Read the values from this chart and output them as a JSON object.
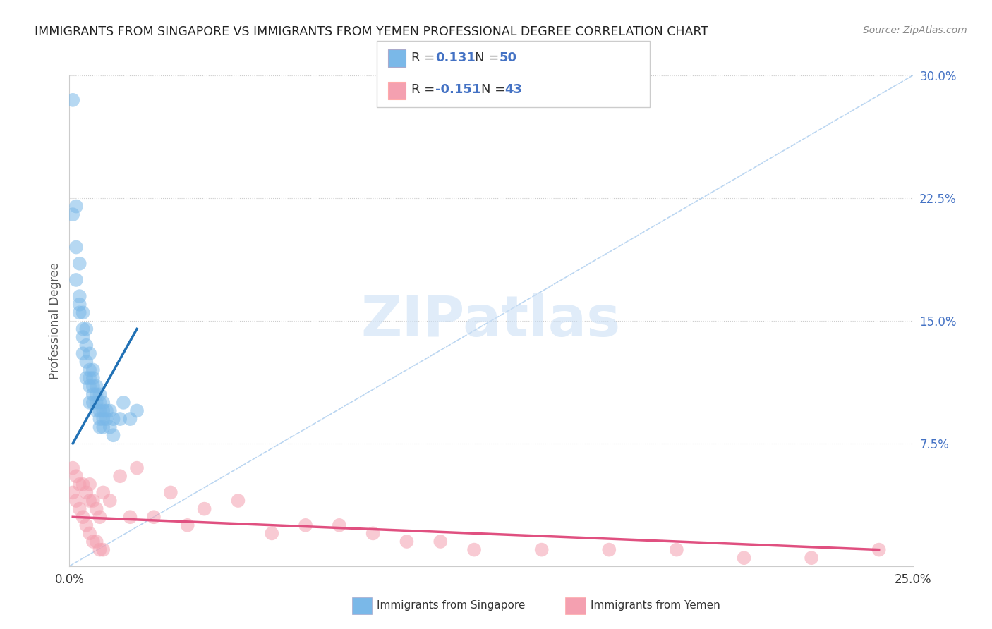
{
  "title": "IMMIGRANTS FROM SINGAPORE VS IMMIGRANTS FROM YEMEN PROFESSIONAL DEGREE CORRELATION CHART",
  "source": "Source: ZipAtlas.com",
  "ylabel": "Professional Degree",
  "xlim": [
    0.0,
    0.25
  ],
  "ylim": [
    0.0,
    0.3
  ],
  "legend_label1": "Immigrants from Singapore",
  "legend_label2": "Immigrants from Yemen",
  "r1": 0.131,
  "n1": 50,
  "r2": -0.151,
  "n2": 43,
  "color_singapore": "#7ab8e8",
  "color_yemen": "#f4a0b0",
  "color_singapore_line": "#2171b5",
  "color_yemen_line": "#e05080",
  "background": "#ffffff",
  "singapore_x": [
    0.001,
    0.001,
    0.002,
    0.002,
    0.002,
    0.003,
    0.003,
    0.003,
    0.003,
    0.004,
    0.004,
    0.004,
    0.004,
    0.005,
    0.005,
    0.005,
    0.005,
    0.006,
    0.006,
    0.006,
    0.006,
    0.006,
    0.007,
    0.007,
    0.007,
    0.007,
    0.007,
    0.008,
    0.008,
    0.008,
    0.008,
    0.009,
    0.009,
    0.009,
    0.009,
    0.009,
    0.01,
    0.01,
    0.01,
    0.01,
    0.011,
    0.011,
    0.012,
    0.012,
    0.013,
    0.013,
    0.015,
    0.016,
    0.018,
    0.02
  ],
  "singapore_y": [
    0.285,
    0.215,
    0.22,
    0.195,
    0.175,
    0.185,
    0.165,
    0.16,
    0.155,
    0.155,
    0.145,
    0.14,
    0.13,
    0.145,
    0.135,
    0.125,
    0.115,
    0.13,
    0.12,
    0.115,
    0.11,
    0.1,
    0.12,
    0.115,
    0.11,
    0.105,
    0.1,
    0.11,
    0.105,
    0.1,
    0.095,
    0.105,
    0.1,
    0.095,
    0.09,
    0.085,
    0.1,
    0.095,
    0.09,
    0.085,
    0.095,
    0.09,
    0.095,
    0.085,
    0.09,
    0.08,
    0.09,
    0.1,
    0.09,
    0.095
  ],
  "yemen_x": [
    0.001,
    0.001,
    0.002,
    0.002,
    0.003,
    0.003,
    0.004,
    0.004,
    0.005,
    0.005,
    0.006,
    0.006,
    0.006,
    0.007,
    0.007,
    0.008,
    0.008,
    0.009,
    0.009,
    0.01,
    0.01,
    0.012,
    0.015,
    0.018,
    0.02,
    0.025,
    0.03,
    0.035,
    0.04,
    0.05,
    0.06,
    0.07,
    0.08,
    0.09,
    0.1,
    0.11,
    0.12,
    0.14,
    0.16,
    0.18,
    0.2,
    0.22,
    0.24
  ],
  "yemen_y": [
    0.06,
    0.045,
    0.055,
    0.04,
    0.05,
    0.035,
    0.05,
    0.03,
    0.045,
    0.025,
    0.05,
    0.04,
    0.02,
    0.04,
    0.015,
    0.035,
    0.015,
    0.03,
    0.01,
    0.045,
    0.01,
    0.04,
    0.055,
    0.03,
    0.06,
    0.03,
    0.045,
    0.025,
    0.035,
    0.04,
    0.02,
    0.025,
    0.025,
    0.02,
    0.015,
    0.015,
    0.01,
    0.01,
    0.01,
    0.01,
    0.005,
    0.005,
    0.01
  ],
  "sg_line_x": [
    0.001,
    0.02
  ],
  "sg_line_y": [
    0.075,
    0.145
  ],
  "ye_line_x": [
    0.001,
    0.24
  ],
  "ye_line_y": [
    0.03,
    0.01
  ]
}
